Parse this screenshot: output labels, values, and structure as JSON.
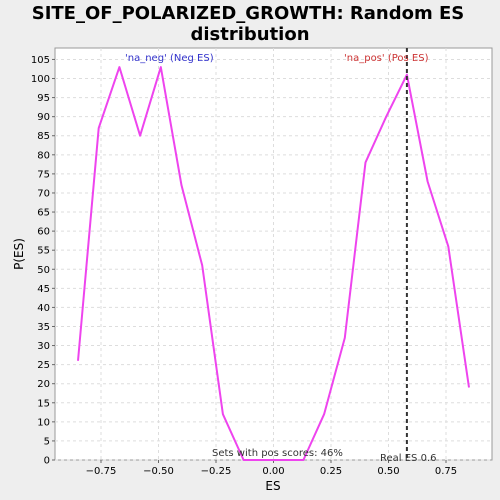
{
  "chart_data": {
    "type": "line",
    "title_lines": [
      "SITE_OF_POLARIZED_GROWTH: Random ES",
      "distribution"
    ],
    "xlabel": "ES",
    "ylabel": "P(ES)",
    "xlim": [
      -0.95,
      0.95
    ],
    "ylim": [
      0,
      108
    ],
    "x_ticks": [
      -0.75,
      -0.5,
      -0.25,
      0.0,
      0.25,
      0.5,
      0.75
    ],
    "x_tick_labels": [
      "−0.75",
      "−0.50",
      "−0.25",
      "0.00",
      "0.25",
      "0.50",
      "0.75"
    ],
    "y_ticks": [
      0,
      5,
      10,
      15,
      20,
      25,
      30,
      35,
      40,
      45,
      50,
      55,
      60,
      65,
      70,
      75,
      80,
      85,
      90,
      95,
      100,
      105
    ],
    "y_tick_labels": [
      "0",
      "5",
      "10",
      "15",
      "20",
      "25",
      "30",
      "35",
      "40",
      "45",
      "50",
      "55",
      "60",
      "65",
      "70",
      "75",
      "80",
      "85",
      "90",
      "95",
      "100",
      "105"
    ],
    "grid": true,
    "series": [
      {
        "color": "#ee44ee",
        "x": [
          -0.85,
          -0.76,
          -0.67,
          -0.58,
          -0.49,
          -0.4,
          -0.31,
          -0.22,
          -0.13,
          -0.04,
          0.04,
          0.13,
          0.22,
          0.31,
          0.4,
          0.49,
          0.58,
          0.67,
          0.76,
          0.85
        ],
        "y": [
          26,
          87,
          103,
          85,
          103,
          72,
          51,
          12,
          0,
          0,
          0,
          0,
          12,
          32,
          78,
          90,
          101,
          73,
          56,
          19
        ]
      }
    ],
    "vline": {
      "x": 0.58,
      "color": "#333333",
      "label": "Real ES 0.6"
    },
    "annotations": {
      "neg_label": "'na_neg' (Neg ES)",
      "neg_color": "#3333cc",
      "pos_label": "'na_pos' (Pos ES)",
      "pos_color": "#cc3333",
      "sets_text": "Sets with pos scores: 46%"
    }
  }
}
